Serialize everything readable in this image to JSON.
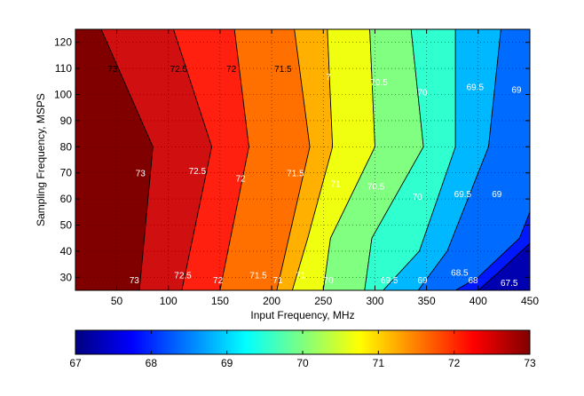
{
  "chart_data": {
    "type": "contour",
    "xlabel": "Input Frequency, MHz",
    "ylabel": "Sampling Frequency, MSPS",
    "xlim": [
      10,
      450
    ],
    "ylim": [
      25,
      125
    ],
    "x_ticks": [
      50,
      100,
      150,
      200,
      250,
      300,
      350,
      400,
      450
    ],
    "y_ticks": [
      30,
      40,
      50,
      60,
      70,
      80,
      90,
      100,
      110,
      120
    ],
    "grid": "dotted",
    "colormap": "jet",
    "colorbar": {
      "position": "bottom",
      "range": [
        67,
        73
      ],
      "ticks": [
        67,
        68,
        69,
        70,
        71,
        72,
        73
      ]
    },
    "contour_levels": [
      {
        "level": 73,
        "fill": "#800000",
        "points": [
          [
            10,
            125
          ],
          [
            35,
            125
          ],
          [
            85,
            80
          ],
          [
            72,
            25
          ],
          [
            10,
            25
          ]
        ]
      },
      {
        "level": 72.5,
        "fill": "#d01010",
        "points": [
          [
            35,
            125
          ],
          [
            105,
            125
          ],
          [
            142,
            80
          ],
          [
            113,
            25
          ],
          [
            72,
            25
          ],
          [
            85,
            80
          ]
        ]
      },
      {
        "level": 72,
        "fill": "#ff2010",
        "points": [
          [
            105,
            125
          ],
          [
            164,
            125
          ],
          [
            178,
            80
          ],
          [
            150,
            25
          ],
          [
            113,
            25
          ],
          [
            142,
            80
          ]
        ]
      },
      {
        "level": 71.5,
        "fill": "#ff7000",
        "points": [
          [
            164,
            125
          ],
          [
            222,
            125
          ],
          [
            237,
            80
          ],
          [
            205,
            25
          ],
          [
            150,
            25
          ],
          [
            178,
            80
          ]
        ]
      },
      {
        "level": 71,
        "fill": "#ffb000",
        "points": [
          [
            222,
            125
          ],
          [
            254,
            125
          ],
          [
            259,
            80
          ],
          [
            235,
            45
          ],
          [
            220,
            25
          ],
          [
            205,
            25
          ],
          [
            237,
            80
          ]
        ]
      },
      {
        "level": 70.5,
        "fill": "#f0ff10",
        "points": [
          [
            254,
            125
          ],
          [
            295,
            125
          ],
          [
            300,
            80
          ],
          [
            257,
            45
          ],
          [
            250,
            25
          ],
          [
            220,
            25
          ],
          [
            235,
            45
          ],
          [
            259,
            80
          ]
        ]
      },
      {
        "level": 70,
        "fill": "#80ff80",
        "points": [
          [
            295,
            125
          ],
          [
            335,
            125
          ],
          [
            347,
            80
          ],
          [
            297,
            45
          ],
          [
            290,
            25
          ],
          [
            250,
            25
          ],
          [
            257,
            45
          ],
          [
            300,
            80
          ]
        ]
      },
      {
        "level": 69.5,
        "fill": "#30ffd0",
        "points": [
          [
            335,
            125
          ],
          [
            378,
            125
          ],
          [
            378,
            80
          ],
          [
            343,
            40
          ],
          [
            308,
            25
          ],
          [
            290,
            25
          ],
          [
            297,
            45
          ],
          [
            347,
            80
          ]
        ]
      },
      {
        "level": 69,
        "fill": "#00b8ff",
        "points": [
          [
            378,
            125
          ],
          [
            422,
            125
          ],
          [
            410,
            80
          ],
          [
            370,
            40
          ],
          [
            342,
            25
          ],
          [
            308,
            25
          ],
          [
            343,
            40
          ],
          [
            378,
            80
          ]
        ]
      },
      {
        "level": 68.5,
        "fill": "#006cff",
        "points": [
          [
            422,
            125
          ],
          [
            450,
            125
          ],
          [
            450,
            55
          ],
          [
            440,
            45
          ],
          [
            400,
            30
          ],
          [
            378,
            25
          ],
          [
            342,
            25
          ],
          [
            370,
            40
          ],
          [
            410,
            80
          ]
        ]
      },
      {
        "level": 68,
        "fill": "#0018ff",
        "points": [
          [
            450,
            55
          ],
          [
            450,
            43
          ],
          [
            420,
            32
          ],
          [
            400,
            25
          ],
          [
            378,
            25
          ],
          [
            400,
            30
          ],
          [
            440,
            45
          ]
        ]
      },
      {
        "level": 67.5,
        "fill": "#0000b0",
        "points": [
          [
            450,
            43
          ],
          [
            450,
            25
          ],
          [
            400,
            25
          ],
          [
            420,
            32
          ]
        ]
      }
    ],
    "labels": [
      {
        "text": "73",
        "x": 46,
        "y": 110,
        "color": "#000000"
      },
      {
        "text": "72.5",
        "x": 110,
        "y": 110,
        "color": "#000000"
      },
      {
        "text": "72",
        "x": 161,
        "y": 110,
        "color": "#000000"
      },
      {
        "text": "71.5",
        "x": 211,
        "y": 110,
        "color": "#000000"
      },
      {
        "text": "7",
        "x": 255,
        "y": 107,
        "color": "#ffffff"
      },
      {
        "text": "70.5",
        "x": 304,
        "y": 105,
        "color": "#ffffff"
      },
      {
        "text": "70",
        "x": 346,
        "y": 101,
        "color": "#ffffff"
      },
      {
        "text": "69.5",
        "x": 397,
        "y": 103,
        "color": "#ffffff"
      },
      {
        "text": "69",
        "x": 437,
        "y": 102,
        "color": "#ffffff"
      },
      {
        "text": "73",
        "x": 73,
        "y": 70,
        "color": "#ffffff"
      },
      {
        "text": "72.5",
        "x": 128,
        "y": 71,
        "color": "#ffffff"
      },
      {
        "text": "72",
        "x": 170,
        "y": 68,
        "color": "#ffffff"
      },
      {
        "text": "71.5",
        "x": 223,
        "y": 70,
        "color": "#ffffff"
      },
      {
        "text": "71",
        "x": 262,
        "y": 66,
        "color": "#ffffff"
      },
      {
        "text": "70.5",
        "x": 301,
        "y": 65,
        "color": "#ffffff"
      },
      {
        "text": "70",
        "x": 341,
        "y": 61,
        "color": "#ffffff"
      },
      {
        "text": "69.5",
        "x": 385,
        "y": 62,
        "color": "#ffffff"
      },
      {
        "text": "69",
        "x": 418,
        "y": 62,
        "color": "#ffffff"
      },
      {
        "text": "73",
        "x": 67,
        "y": 29,
        "color": "#ffffff"
      },
      {
        "text": "72.5",
        "x": 114,
        "y": 31,
        "color": "#ffffff"
      },
      {
        "text": "72",
        "x": 148,
        "y": 29,
        "color": "#ffffff"
      },
      {
        "text": "71.5",
        "x": 187,
        "y": 31,
        "color": "#ffffff"
      },
      {
        "text": "71",
        "x": 206,
        "y": 29,
        "color": "#ffffff"
      },
      {
        "text": "71",
        "x": 228,
        "y": 31,
        "color": "#ffffff"
      },
      {
        "text": "70",
        "x": 255,
        "y": 29,
        "color": "#ffffff"
      },
      {
        "text": "69.5",
        "x": 314,
        "y": 29,
        "color": "#ffffff"
      },
      {
        "text": "69",
        "x": 346,
        "y": 29,
        "color": "#ffffff"
      },
      {
        "text": "68.5",
        "x": 382,
        "y": 32,
        "color": "#ffffff"
      },
      {
        "text": "68",
        "x": 395,
        "y": 29,
        "color": "#ffffff"
      },
      {
        "text": "67.5",
        "x": 430,
        "y": 28,
        "color": "#ffffff"
      }
    ]
  }
}
